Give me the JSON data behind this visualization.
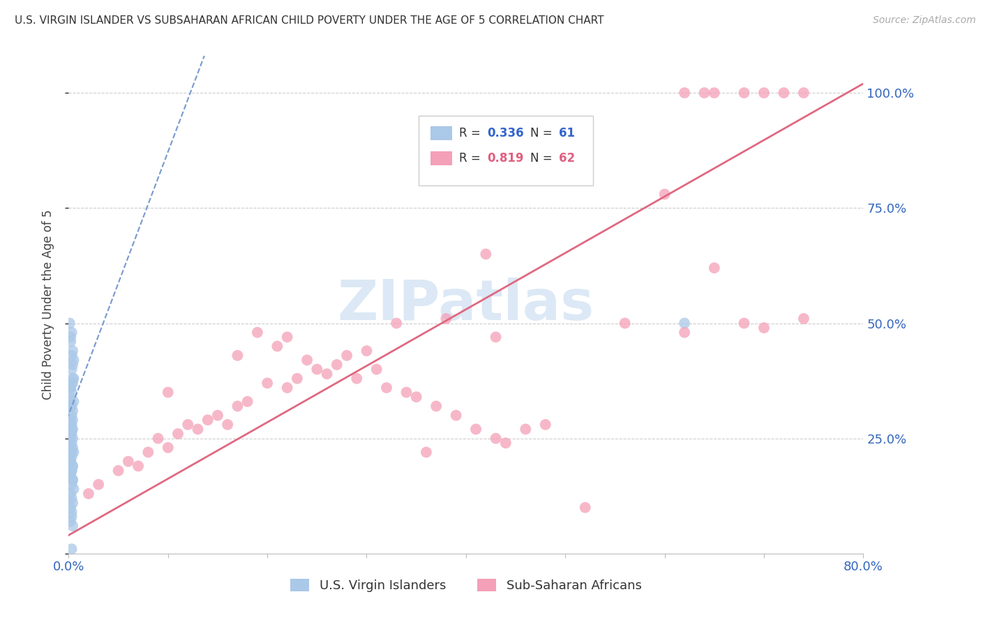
{
  "title": "U.S. VIRGIN ISLANDER VS SUBSAHARAN AFRICAN CHILD POVERTY UNDER THE AGE OF 5 CORRELATION CHART",
  "source": "Source: ZipAtlas.com",
  "ylabel": "Child Poverty Under the Age of 5",
  "xlim": [
    0.0,
    0.8
  ],
  "ylim": [
    0.0,
    1.08
  ],
  "blue_color": "#aac8e8",
  "blue_line_color": "#7799cc",
  "pink_color": "#f4a0b8",
  "pink_line_color": "#e06880",
  "blue_R": 0.336,
  "blue_N": 61,
  "pink_R": 0.819,
  "pink_N": 62,
  "watermark": "ZIPatlas",
  "watermark_color": "#dce8f5",
  "background_color": "#ffffff",
  "blue_scatter_x": [
    0.002,
    0.003,
    0.004,
    0.005,
    0.001,
    0.003,
    0.002,
    0.004,
    0.005,
    0.003,
    0.002,
    0.004,
    0.003,
    0.005,
    0.002,
    0.003,
    0.004,
    0.002,
    0.003,
    0.001,
    0.004,
    0.003,
    0.002,
    0.005,
    0.003,
    0.002,
    0.004,
    0.003,
    0.002,
    0.004,
    0.003,
    0.005,
    0.002,
    0.003,
    0.004,
    0.002,
    0.003,
    0.004,
    0.003,
    0.002,
    0.001,
    0.002,
    0.003,
    0.004,
    0.002,
    0.003,
    0.004,
    0.003,
    0.002,
    0.004,
    0.003,
    0.002,
    0.004,
    0.003,
    0.002,
    0.004,
    0.003,
    0.002,
    0.004,
    0.003,
    0.62
  ],
  "blue_scatter_y": [
    0.46,
    0.48,
    0.44,
    0.42,
    0.5,
    0.43,
    0.47,
    0.41,
    0.38,
    0.4,
    0.36,
    0.37,
    0.35,
    0.33,
    0.32,
    0.3,
    0.29,
    0.28,
    0.27,
    0.26,
    0.25,
    0.24,
    0.23,
    0.22,
    0.21,
    0.2,
    0.19,
    0.18,
    0.17,
    0.16,
    0.15,
    0.14,
    0.13,
    0.12,
    0.11,
    0.1,
    0.09,
    0.38,
    0.37,
    0.36,
    0.34,
    0.33,
    0.32,
    0.31,
    0.29,
    0.28,
    0.27,
    0.26,
    0.25,
    0.23,
    0.22,
    0.2,
    0.19,
    0.18,
    0.17,
    0.16,
    0.08,
    0.07,
    0.06,
    0.01,
    0.5
  ],
  "pink_scatter_x": [
    0.02,
    0.03,
    0.05,
    0.06,
    0.07,
    0.08,
    0.09,
    0.1,
    0.11,
    0.12,
    0.13,
    0.14,
    0.15,
    0.16,
    0.17,
    0.18,
    0.1,
    0.2,
    0.22,
    0.23,
    0.24,
    0.25,
    0.26,
    0.27,
    0.28,
    0.29,
    0.21,
    0.31,
    0.32,
    0.3,
    0.34,
    0.35,
    0.22,
    0.37,
    0.17,
    0.39,
    0.33,
    0.41,
    0.19,
    0.43,
    0.44,
    0.38,
    0.46,
    0.48,
    0.42,
    0.52,
    0.43,
    0.56,
    0.36,
    0.6,
    0.62,
    0.64,
    0.65,
    0.68,
    0.7,
    0.72,
    0.74,
    0.62,
    0.65,
    0.68,
    0.7,
    0.74
  ],
  "pink_scatter_y": [
    0.13,
    0.15,
    0.18,
    0.2,
    0.19,
    0.22,
    0.25,
    0.23,
    0.26,
    0.28,
    0.27,
    0.29,
    0.3,
    0.28,
    0.32,
    0.33,
    0.35,
    0.37,
    0.36,
    0.38,
    0.42,
    0.4,
    0.39,
    0.41,
    0.43,
    0.38,
    0.45,
    0.4,
    0.36,
    0.44,
    0.35,
    0.34,
    0.47,
    0.32,
    0.43,
    0.3,
    0.5,
    0.27,
    0.48,
    0.25,
    0.24,
    0.51,
    0.27,
    0.28,
    0.65,
    0.1,
    0.47,
    0.5,
    0.22,
    0.78,
    1.0,
    1.0,
    1.0,
    1.0,
    1.0,
    1.0,
    1.0,
    0.48,
    0.62,
    0.5,
    0.49,
    0.51
  ],
  "blue_line_x0": -0.01,
  "blue_line_y0": 0.245,
  "blue_line_x1": 0.14,
  "blue_line_y1": 1.1,
  "pink_line_x0": 0.0,
  "pink_line_y0": 0.04,
  "pink_line_x1": 0.8,
  "pink_line_y1": 1.02
}
